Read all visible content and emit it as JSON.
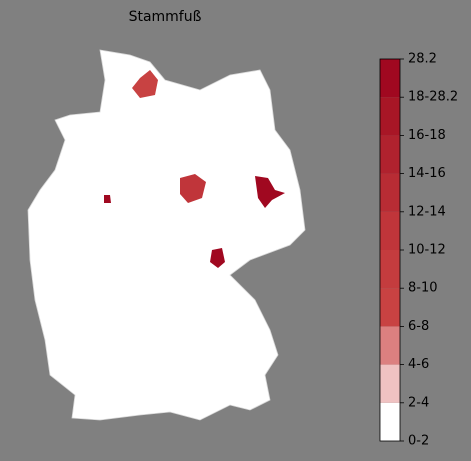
{
  "title": "Stammfuß",
  "colorbar": {
    "labels": [
      "0-2",
      "2-4",
      "4-6",
      "6-8",
      "8-10",
      "10-12",
      "12-14",
      "14-16",
      "16-18",
      "18-28.2",
      "28.2"
    ],
    "colors": [
      "#ffffff",
      "#f0c2c2",
      "#dc8080",
      "#c84242",
      "#c43c3e",
      "#c0353a",
      "#b82c34",
      "#b0222e",
      "#a81626",
      "#a00820"
    ]
  }
}
